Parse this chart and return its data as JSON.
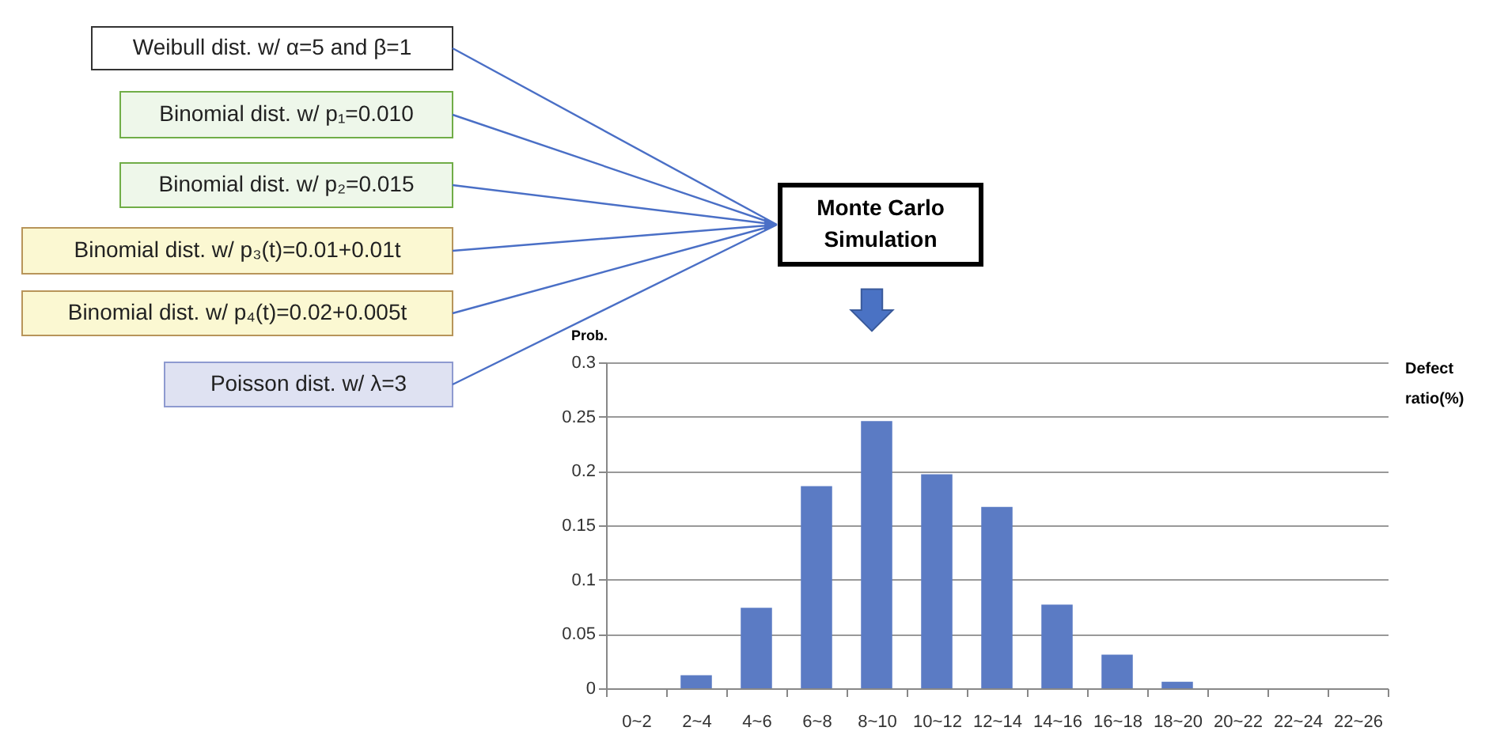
{
  "chart_data": {
    "type": "bar",
    "categories": [
      "0~2",
      "2~4",
      "4~6",
      "6~8",
      "8~10",
      "10~12",
      "12~14",
      "14~16",
      "16~18",
      "18~20",
      "20~22",
      "22~24",
      "22~26"
    ],
    "values": [
      0,
      0.012,
      0.074,
      0.186,
      0.246,
      0.197,
      0.167,
      0.077,
      0.031,
      0.006,
      0,
      0,
      0
    ],
    "color": "#5b7bc4",
    "xlabel": "Defect ratio(%)",
    "ylabel": "Prob.",
    "ylim": [
      0,
      0.3
    ],
    "yticks": [
      0,
      0.05,
      0.1,
      0.15,
      0.2,
      0.25,
      0.3
    ],
    "grid": "y",
    "annotations": [
      "Weibull dist. w/ α=5 and β=1",
      "Binomial dist. w/ p₁=0.010",
      "Binomial dist. w/ p₂=0.015",
      "Binomial dist. w/ p₃(t)=0.01+0.01t",
      "Binomial dist. w/ p₄(t)=0.02+0.005t",
      "Poisson dist. w/  λ=3",
      "Monte Carlo Simulation"
    ]
  }
}
